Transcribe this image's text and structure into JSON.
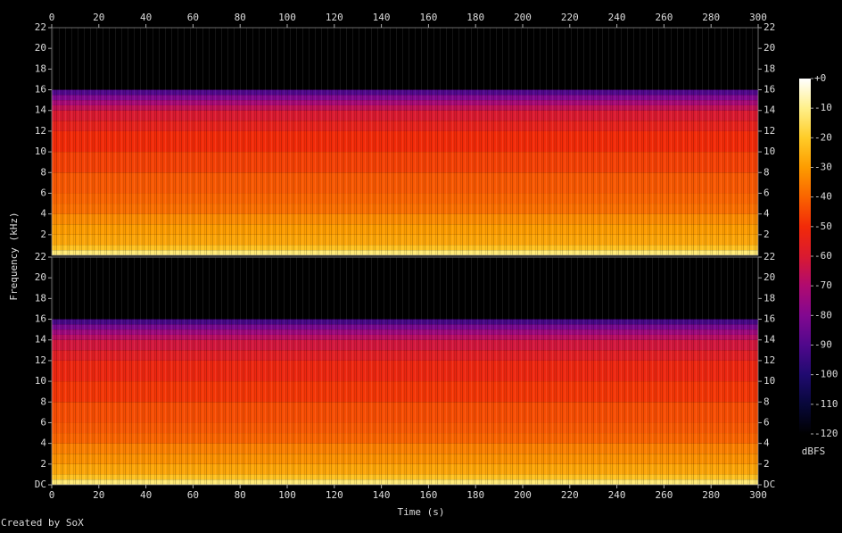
{
  "chart_data": {
    "type": "spectrogram",
    "xlabel": "Time (s)",
    "ylabel": "Frequency (kHz)",
    "credit": "Created by SoX",
    "xlim": [
      0,
      300
    ],
    "xticks": [
      0,
      20,
      40,
      60,
      80,
      100,
      120,
      140,
      160,
      180,
      200,
      220,
      240,
      260,
      280,
      300
    ],
    "channels": [
      {
        "ylim": [
          0,
          22
        ],
        "yticks": [
          2,
          4,
          6,
          8,
          10,
          12,
          14,
          16,
          18,
          20,
          22
        ],
        "frequencies": [
          0,
          0.5,
          1,
          2,
          3,
          4,
          5,
          6,
          8,
          10,
          12,
          13,
          14,
          14.5,
          15,
          15.5,
          16,
          22
        ],
        "levels": [
          -12,
          -22,
          -28,
          -30,
          -33,
          -38,
          -40,
          -42,
          -46,
          -50,
          -55,
          -60,
          -66,
          -72,
          -80,
          -90,
          -120,
          -120
        ]
      },
      {
        "ylim": [
          0,
          22
        ],
        "yticks": [
          {
            "value": 0,
            "label": "DC"
          },
          2,
          4,
          6,
          8,
          10,
          12,
          14,
          16,
          18,
          20,
          22
        ],
        "frequencies": [
          0,
          0.5,
          1,
          2,
          3,
          4,
          5,
          6,
          8,
          10,
          12,
          13,
          14,
          14.5,
          15,
          15.5,
          16,
          22
        ],
        "levels": [
          -12,
          -22,
          -28,
          -32,
          -35,
          -40,
          -42,
          -44,
          -48,
          -52,
          -57,
          -62,
          -68,
          -74,
          -82,
          -92,
          -120,
          -120
        ]
      }
    ],
    "colorbar": {
      "label": "dBFS",
      "zlim": [
        -120,
        0
      ],
      "zticks": [
        {
          "value": 0,
          "label": "+0"
        },
        -10,
        -20,
        -30,
        -40,
        -50,
        -60,
        -70,
        -80,
        -90,
        -100,
        -110,
        -120
      ]
    },
    "colormap": [
      {
        "value": -120,
        "color": "#000000"
      },
      {
        "value": -110,
        "color": "#08083a"
      },
      {
        "value": -100,
        "color": "#200a70"
      },
      {
        "value": -90,
        "color": "#50088c"
      },
      {
        "value": -80,
        "color": "#820890"
      },
      {
        "value": -70,
        "color": "#b00a70"
      },
      {
        "value": -60,
        "color": "#da1a30"
      },
      {
        "value": -50,
        "color": "#f22a08"
      },
      {
        "value": -40,
        "color": "#fa6400"
      },
      {
        "value": -30,
        "color": "#fd9c00"
      },
      {
        "value": -20,
        "color": "#ffcc28"
      },
      {
        "value": -10,
        "color": "#fff08a"
      },
      {
        "value": 0,
        "color": "#ffffff"
      }
    ]
  }
}
